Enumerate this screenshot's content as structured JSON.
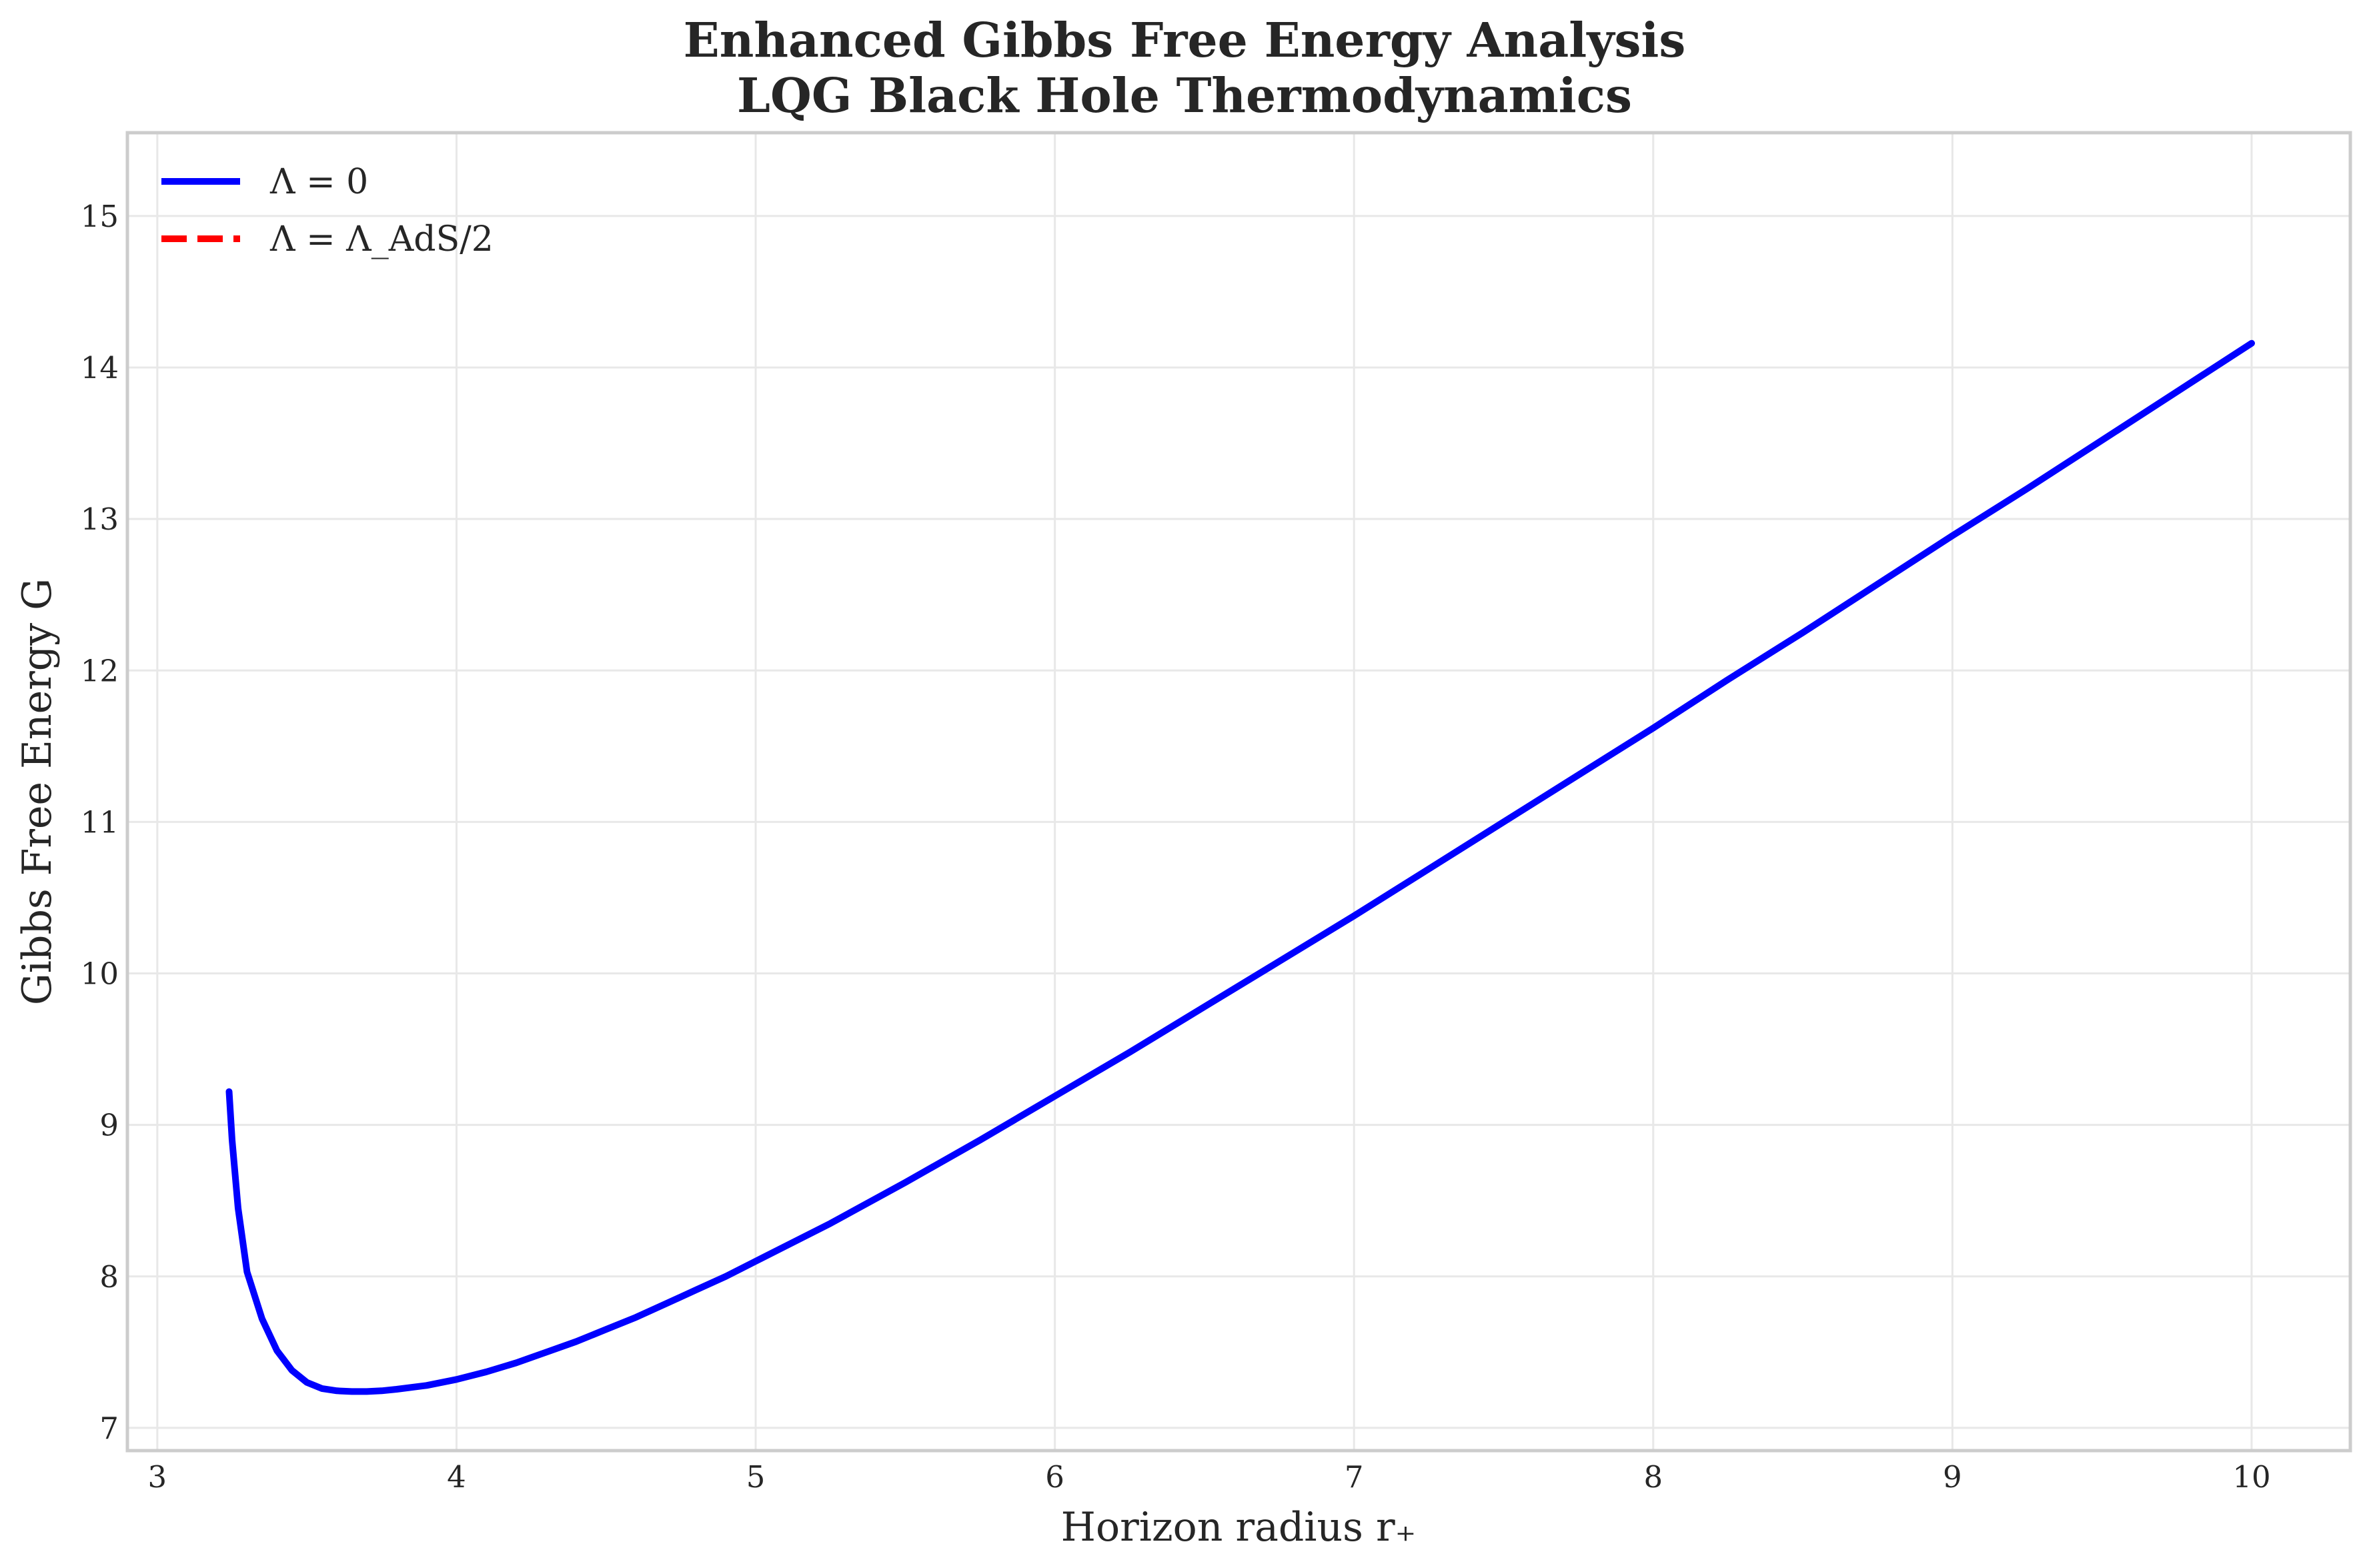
{
  "chart_data": {
    "type": "line",
    "title": [
      "Enhanced Gibbs Free Energy Analysis",
      "LQG Black Hole Thermodynamics"
    ],
    "xlabel": "Horizon radius r₊",
    "ylabel": "Gibbs Free Energy G",
    "xlim": [
      2.9,
      10.33
    ],
    "ylim": [
      6.85,
      15.55
    ],
    "xticks": [
      3,
      4,
      5,
      6,
      7,
      8,
      9,
      10
    ],
    "yticks": [
      7,
      8,
      9,
      10,
      11,
      12,
      13,
      14,
      15
    ],
    "grid": true,
    "legend_position": "upper-left",
    "series": [
      {
        "name": "Λ = 0",
        "color": "#0000ff",
        "linestyle": "solid",
        "x": [
          3.24,
          3.25,
          3.27,
          3.3,
          3.35,
          3.4,
          3.45,
          3.5,
          3.55,
          3.6,
          3.65,
          3.7,
          3.75,
          3.8,
          3.9,
          4.0,
          4.1,
          4.2,
          4.3,
          4.4,
          4.5,
          4.6,
          4.7,
          4.8,
          4.9,
          5.0,
          5.25,
          5.5,
          5.75,
          6.0,
          6.25,
          6.5,
          6.75,
          7.0,
          7.25,
          7.5,
          7.75,
          8.0,
          8.25,
          8.5,
          8.75,
          9.0,
          9.25,
          9.5,
          9.75,
          10.0
        ],
        "y": [
          9.22,
          8.9,
          8.45,
          8.03,
          7.72,
          7.51,
          7.38,
          7.3,
          7.26,
          7.245,
          7.24,
          7.24,
          7.245,
          7.255,
          7.28,
          7.32,
          7.37,
          7.43,
          7.5,
          7.57,
          7.65,
          7.73,
          7.82,
          7.91,
          8.0,
          8.1,
          8.35,
          8.62,
          8.9,
          9.19,
          9.48,
          9.78,
          10.08,
          10.38,
          10.69,
          11.0,
          11.31,
          11.62,
          11.94,
          12.25,
          12.57,
          12.89,
          13.2,
          13.52,
          13.84,
          14.16
        ]
      },
      {
        "name": "Λ = Λ_AdS/2",
        "color": "#ff0000",
        "linestyle": "dashed",
        "x": [],
        "y": []
      }
    ]
  }
}
